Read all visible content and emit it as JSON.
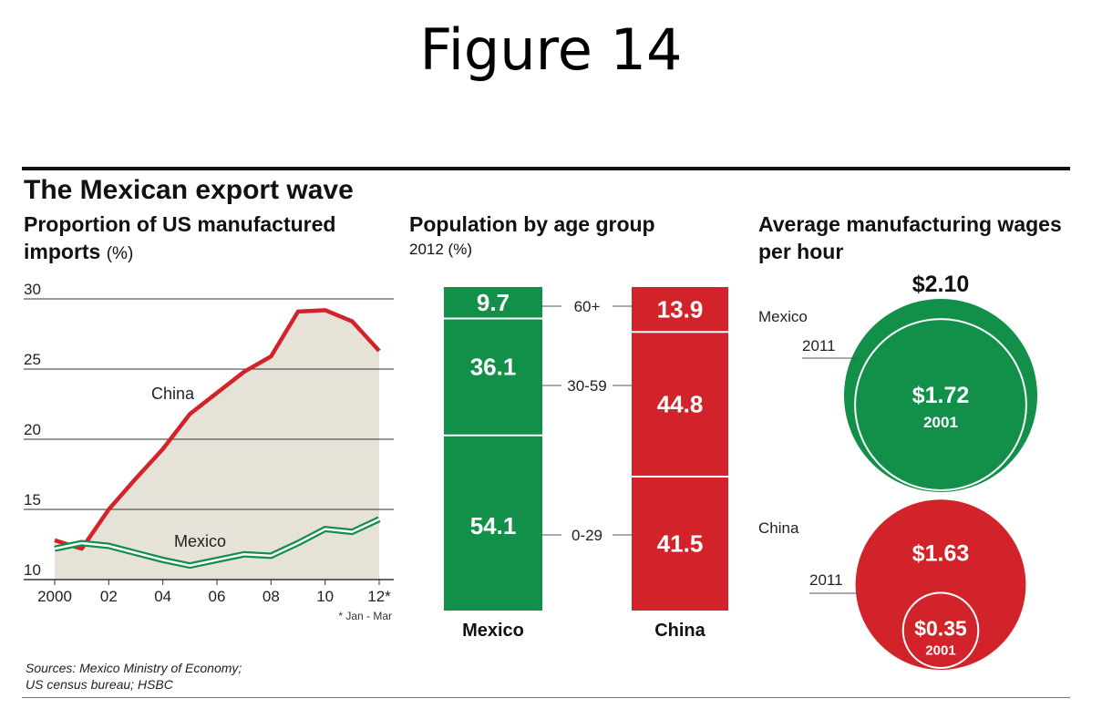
{
  "figure_title": "Figure 14",
  "main_title": "The Mexican export wave",
  "sources_line1": "Sources:  Mexico Ministry of Economy;",
  "sources_line2": "US census bureau; HSBC",
  "colors": {
    "mexico": "#12904a",
    "china": "#d2232a",
    "area": "#e6e2d7",
    "grid": "#333333"
  },
  "chart_data": [
    {
      "type": "line",
      "title": "Proportion of US manufactured imports",
      "unit": "(%)",
      "ylim": [
        10,
        30
      ],
      "yticks": [
        "10",
        "15",
        "20",
        "25",
        "30"
      ],
      "xtick_labels": [
        "2000",
        "02",
        "04",
        "06",
        "08",
        "10",
        "12*"
      ],
      "xtick_values": [
        2000,
        2002,
        2004,
        2006,
        2008,
        2010,
        2012
      ],
      "note": "* Jan - Mar",
      "grid": true,
      "x": [
        2000,
        2001,
        2002,
        2003,
        2004,
        2005,
        2006,
        2007,
        2008,
        2009,
        2010,
        2011,
        2012
      ],
      "series": [
        {
          "name": "China",
          "values": [
            12.8,
            12.2,
            15,
            17.2,
            19.3,
            21.8,
            23.3,
            24.8,
            25.9,
            29.1,
            29.2,
            28.4,
            26.3
          ]
        },
        {
          "name": "Mexico",
          "values": [
            12.2,
            12.6,
            12.4,
            11.9,
            11.4,
            11.0,
            11.4,
            11.8,
            11.7,
            12.6,
            13.6,
            13.4,
            14.3
          ]
        }
      ]
    },
    {
      "type": "bar",
      "stacked": true,
      "title": "Population by age group",
      "subtitle": "2012 (%)",
      "categories": [
        "Mexico",
        "China"
      ],
      "age_groups": [
        "60+",
        "30-59",
        "0-29"
      ],
      "series": [
        {
          "name": "60+",
          "values": [
            9.7,
            13.9
          ]
        },
        {
          "name": "30-59",
          "values": [
            36.1,
            44.8
          ]
        },
        {
          "name": "0-29",
          "values": [
            54.1,
            41.5
          ]
        }
      ]
    },
    {
      "type": "bubble",
      "title": "Average manufacturing wages per hour",
      "groups": [
        {
          "name": "Mexico",
          "year_outer": "2011",
          "value_outer": 2.1,
          "label_outer": "$2.10",
          "year_inner": "2001",
          "value_inner": 1.72,
          "label_inner": "$1.72"
        },
        {
          "name": "China",
          "year_outer": "2011",
          "value_outer": 1.63,
          "label_outer": "$1.63",
          "year_inner": "2001",
          "value_inner": 0.35,
          "label_inner": "$0.35"
        }
      ]
    }
  ]
}
